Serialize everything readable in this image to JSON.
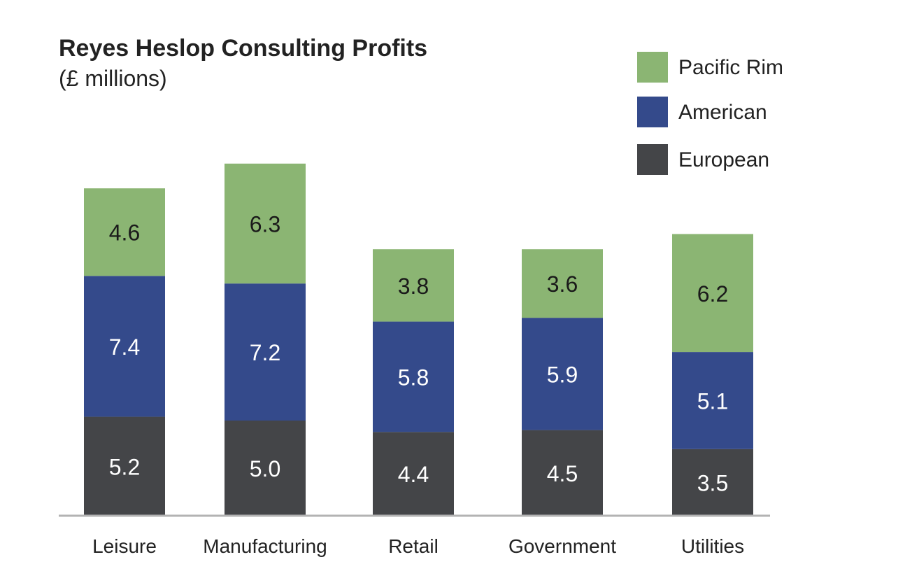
{
  "chart_data": {
    "type": "bar",
    "stacked": true,
    "title": "Reyes Heslop Consulting Profits",
    "subtitle": "(£ millions)",
    "categories": [
      "Leisure",
      "Manufacturing",
      "Retail",
      "Government",
      "Utilities"
    ],
    "series": [
      {
        "name": "European",
        "color": "#444548",
        "label_color": "#ffffff",
        "values": [
          5.2,
          5.0,
          4.4,
          4.5,
          3.5
        ]
      },
      {
        "name": "American",
        "color": "#344a8b",
        "label_color": "#ffffff",
        "values": [
          7.4,
          7.2,
          5.8,
          5.9,
          5.1
        ]
      },
      {
        "name": "Pacific Rim",
        "color": "#8bb573",
        "label_color": "#1a1a1a",
        "values": [
          4.6,
          6.3,
          3.8,
          3.6,
          6.2
        ]
      }
    ],
    "legend_order": [
      "Pacific Rim",
      "American",
      "European"
    ],
    "legend_position": "top-right",
    "grid": false,
    "ylim": [
      0,
      20
    ]
  }
}
